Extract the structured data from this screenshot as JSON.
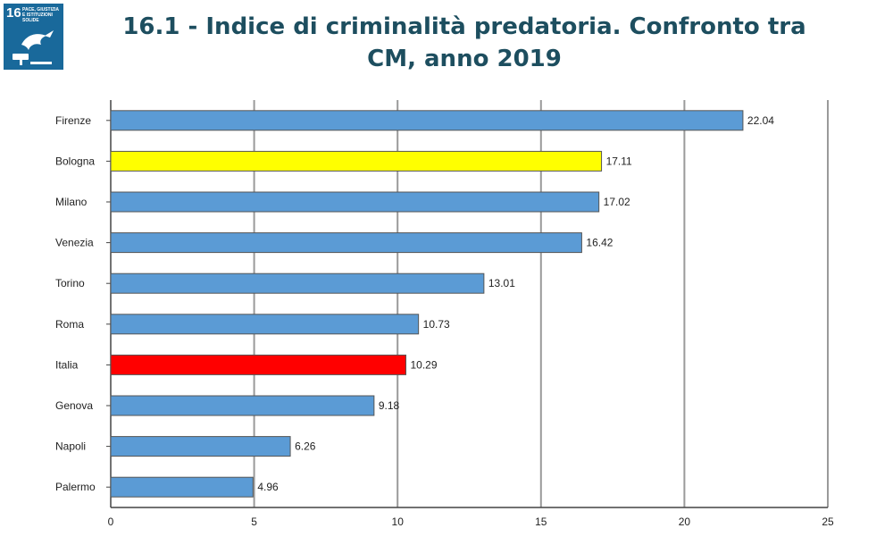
{
  "header": {
    "title": "16.1 - Indice di criminalità predatoria. Confronto tra CM, anno 2019"
  },
  "sdg_badge": {
    "number": "16",
    "caption": "PACE, GIUSTIZIA E ISTITUZIONI SOLIDE",
    "color": "#19699b",
    "icon": "dove-gavel-icon"
  },
  "chart_data": {
    "type": "bar",
    "orientation": "horizontal",
    "title": "16.1 - Indice di criminalità predatoria. Confronto tra CM, anno 2019",
    "xlabel": "",
    "ylabel": "",
    "xlim": [
      0,
      25
    ],
    "xticks": [
      0,
      5,
      10,
      15,
      20,
      25
    ],
    "grid": "vertical",
    "legend": "none",
    "categories": [
      "Firenze",
      "Bologna",
      "Milano",
      "Venezia",
      "Torino",
      "Roma",
      "Italia",
      "Genova",
      "Napoli",
      "Palermo"
    ],
    "values": [
      22.04,
      17.11,
      17.02,
      16.42,
      13.01,
      10.73,
      10.29,
      9.18,
      6.26,
      4.96
    ],
    "value_labels": [
      "22.04",
      "17.11",
      "17.02",
      "16.42",
      "13.01",
      "10.73",
      "10.29",
      "9.18",
      "6.26",
      "4.96"
    ],
    "colors": [
      "#5b9bd5",
      "#ffff00",
      "#5b9bd5",
      "#5b9bd5",
      "#5b9bd5",
      "#5b9bd5",
      "#ff0000",
      "#5b9bd5",
      "#5b9bd5",
      "#5b9bd5"
    ]
  }
}
